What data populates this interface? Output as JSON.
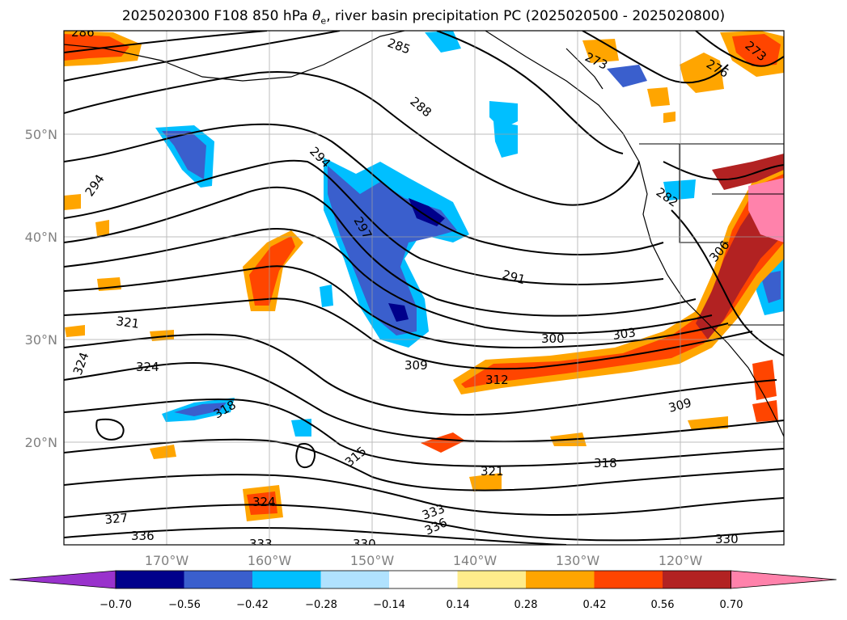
{
  "title": {
    "prefix": "2025020300 F108 850 hPa ",
    "symbol": "θ",
    "subscript": "e",
    "suffix": ", river basin precipitation PC (2025020500 - 2025020800)"
  },
  "axes": {
    "lat_labels": [
      "50°N",
      "40°N",
      "30°N",
      "20°N"
    ],
    "lon_labels": [
      "170°W",
      "160°W",
      "150°W",
      "140°W",
      "130°W",
      "120°W"
    ]
  },
  "colorbar": {
    "colors": [
      "#9932cc",
      "#00008b",
      "#3a5fcd",
      "#00bfff",
      "#b0e2ff",
      "#ffffff",
      "#ffec8b",
      "#ffa500",
      "#ff4500",
      "#b22222",
      "#ff82ab"
    ],
    "tick_labels": [
      "−0.70",
      "−0.56",
      "−0.42",
      "−0.28",
      "−0.14",
      "0.14",
      "0.28",
      "0.42",
      "0.56",
      "0.70"
    ]
  },
  "contour_labels": [
    "286",
    "285",
    "288",
    "294",
    "294",
    "297",
    "291",
    "300",
    "303",
    "309",
    "312",
    "309",
    "306",
    "321",
    "324",
    "324",
    "318",
    "315",
    "318",
    "321",
    "324",
    "327",
    "333",
    "336",
    "336",
    "333",
    "330",
    "330",
    "273",
    "276",
    "273",
    "282"
  ]
}
